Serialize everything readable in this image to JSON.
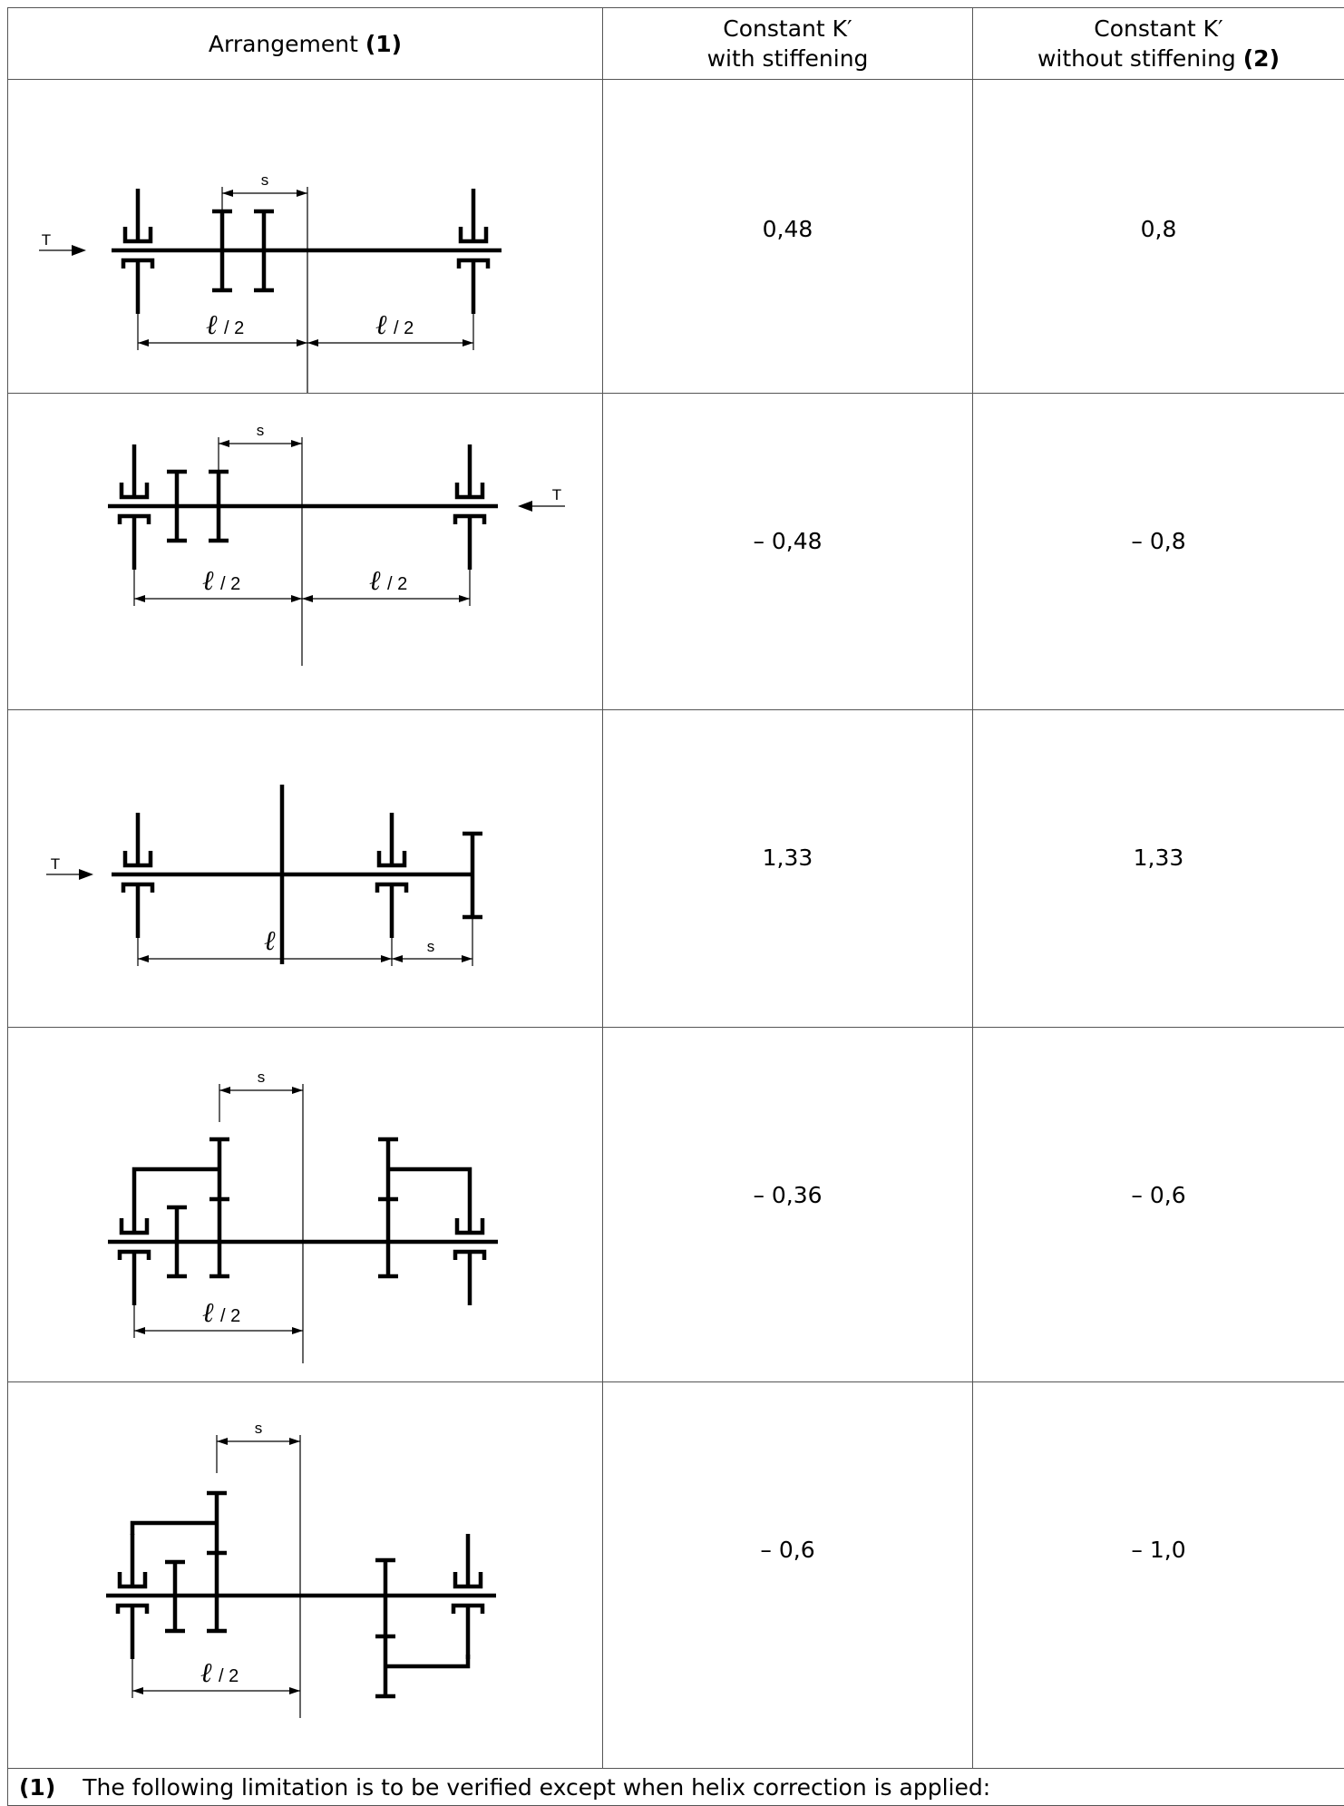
{
  "header": {
    "arrangement": "Arrangement",
    "arrangement_note": "(1)",
    "with_line1": "Constant K′",
    "with_line2": "with stiffening",
    "without_line1": "Constant K′",
    "without_line2": "without stiffening",
    "without_note": "(2)"
  },
  "figure_labels": {
    "T": "T",
    "s": "s",
    "ell": "ℓ",
    "ell_half": "ℓ",
    "half": "/ 2"
  },
  "rows": [
    {
      "with_stiffening": "0,48",
      "without_stiffening": "0,8"
    },
    {
      "with_stiffening": "– 0,48",
      "without_stiffening": "– 0,8"
    },
    {
      "with_stiffening": "1,33",
      "without_stiffening": "1,33"
    },
    {
      "with_stiffening": "– 0,36",
      "without_stiffening": "– 0,6"
    },
    {
      "with_stiffening": "– 0,6",
      "without_stiffening": "– 1,0"
    }
  ],
  "footnote": {
    "marker": "(1)",
    "text": "The following limitation is to be verified except when helix correction is applied:"
  }
}
